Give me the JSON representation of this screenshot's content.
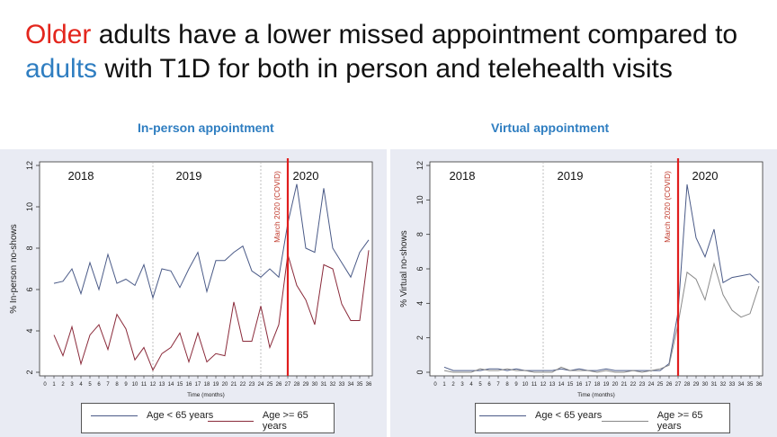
{
  "slide": {
    "title_word_older": "Older",
    "title_mid": " adults have a lower missed appointment compared to ",
    "title_word_adults": "adults",
    "title_end": " with T1D for both in person and telehealth visits"
  },
  "colors": {
    "older": "#e3261d",
    "adults": "#2f7ec1",
    "series_young": "#4a5a87",
    "series_old": "#8a2a3a",
    "covid_line": "#e01e1e"
  },
  "chart_data": [
    {
      "type": "line",
      "title": "In-person appointment",
      "xlabel": "Time (months)",
      "ylabel": "% In-person no-shows",
      "x": [
        0,
        1,
        2,
        3,
        4,
        5,
        6,
        7,
        8,
        9,
        10,
        11,
        12,
        13,
        14,
        15,
        16,
        17,
        18,
        19,
        20,
        21,
        22,
        23,
        24,
        25,
        26,
        27,
        28,
        29,
        30,
        31,
        32,
        33,
        34,
        35,
        36
      ],
      "xlim": [
        0,
        36
      ],
      "ylim": [
        2,
        12
      ],
      "yticks": [
        2,
        4,
        6,
        8,
        10,
        12
      ],
      "year_labels": [
        {
          "label": "2018",
          "x": 4
        },
        {
          "label": "2019",
          "x": 16
        },
        {
          "label": "2020",
          "x": 29
        }
      ],
      "year_dividers": [
        12,
        24
      ],
      "covid_x": 27,
      "covid_label": "March 2020 (COVID)",
      "series": [
        {
          "name": "Age < 65 years",
          "x": [
            1,
            2,
            3,
            4,
            5,
            6,
            7,
            8,
            9,
            10,
            11,
            12,
            13,
            14,
            15,
            16,
            17,
            18,
            19,
            20,
            21,
            22,
            23,
            24,
            25,
            26,
            27,
            28,
            29,
            30,
            31,
            32,
            33,
            34,
            35,
            36
          ],
          "values": [
            6.3,
            6.4,
            7.0,
            5.8,
            7.3,
            6.0,
            7.7,
            6.3,
            6.5,
            6.2,
            7.2,
            5.6,
            7.0,
            6.9,
            6.1,
            7.0,
            7.8,
            5.9,
            7.4,
            7.4,
            7.8,
            8.1,
            6.9,
            6.6,
            7.0,
            6.6,
            9.2,
            11.1,
            8.0,
            7.8,
            10.9,
            8.0,
            7.3,
            6.6,
            7.8,
            8.4
          ]
        },
        {
          "name": "Age >= 65 years",
          "x": [
            1,
            2,
            3,
            4,
            5,
            6,
            7,
            8,
            9,
            10,
            11,
            12,
            13,
            14,
            15,
            16,
            17,
            18,
            19,
            20,
            21,
            22,
            23,
            24,
            25,
            26,
            27,
            28,
            29,
            30,
            31,
            32,
            33,
            34,
            35,
            36
          ],
          "values": [
            3.8,
            2.8,
            4.2,
            2.4,
            3.8,
            4.3,
            3.1,
            4.8,
            4.1,
            2.6,
            3.2,
            2.1,
            2.9,
            3.2,
            3.9,
            2.5,
            3.9,
            2.5,
            2.9,
            2.8,
            5.4,
            3.5,
            3.5,
            5.2,
            3.2,
            4.3,
            7.7,
            6.2,
            5.5,
            4.3,
            7.2,
            7.0,
            5.3,
            4.5,
            4.5,
            7.9
          ]
        }
      ],
      "legend": "bottom"
    },
    {
      "type": "line",
      "title": "Virtual appointment",
      "xlabel": "Time (months)",
      "ylabel": "% Virtual no-shows",
      "x": [
        0,
        1,
        2,
        3,
        4,
        5,
        6,
        7,
        8,
        9,
        10,
        11,
        12,
        13,
        14,
        15,
        16,
        17,
        18,
        19,
        20,
        21,
        22,
        23,
        24,
        25,
        26,
        27,
        28,
        29,
        30,
        31,
        32,
        33,
        34,
        35,
        36
      ],
      "xlim": [
        0,
        36
      ],
      "ylim": [
        0,
        12
      ],
      "yticks": [
        0,
        2,
        4,
        6,
        8,
        10,
        12
      ],
      "year_labels": [
        {
          "label": "2018",
          "x": 3
        },
        {
          "label": "2019",
          "x": 15
        },
        {
          "label": "2020",
          "x": 30
        }
      ],
      "year_dividers": [
        12,
        24
      ],
      "covid_x": 27,
      "covid_label": "March 2020 (COVID)",
      "series": [
        {
          "name": "Age < 65 years",
          "x": [
            1,
            2,
            3,
            4,
            5,
            6,
            7,
            8,
            9,
            10,
            11,
            12,
            13,
            14,
            15,
            16,
            17,
            18,
            19,
            20,
            21,
            22,
            23,
            24,
            25,
            26,
            27,
            28,
            29,
            30,
            31,
            32,
            33,
            34,
            35,
            36
          ],
          "values": [
            0.3,
            0.1,
            0.1,
            0.1,
            0.1,
            0.2,
            0.2,
            0.1,
            0.2,
            0.1,
            0.1,
            0.1,
            0.1,
            0.2,
            0.1,
            0.2,
            0.1,
            0.1,
            0.2,
            0.1,
            0.1,
            0.1,
            0.1,
            0.1,
            0.1,
            0.5,
            3.5,
            10.9,
            7.8,
            6.7,
            8.3,
            5.2,
            5.5,
            5.6,
            5.7,
            5.2
          ]
        },
        {
          "name": "Age >= 65 years",
          "x": [
            1,
            2,
            3,
            4,
            5,
            6,
            7,
            8,
            9,
            10,
            11,
            12,
            13,
            14,
            15,
            16,
            17,
            18,
            19,
            20,
            21,
            22,
            23,
            24,
            25,
            26,
            27,
            28,
            29,
            30,
            31,
            32,
            33,
            34,
            35,
            36
          ],
          "values": [
            0.1,
            0.0,
            0.0,
            0.0,
            0.2,
            0.1,
            0.1,
            0.2,
            0.1,
            0.1,
            0.0,
            0.0,
            0.0,
            0.3,
            0.1,
            0.1,
            0.1,
            0.0,
            0.1,
            0.0,
            0.0,
            0.1,
            0.0,
            0.1,
            0.2,
            0.4,
            2.8,
            5.8,
            5.4,
            4.2,
            6.3,
            4.5,
            3.6,
            3.2,
            3.4,
            5.0
          ]
        }
      ],
      "legend": "bottom"
    }
  ]
}
